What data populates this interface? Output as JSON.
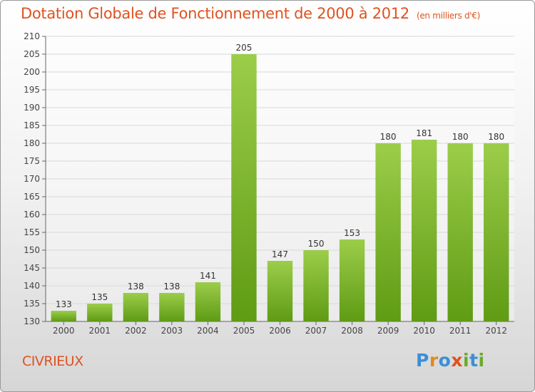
{
  "header": {
    "title": "Dotation Globale de Fonctionnement de 2000 à 2012",
    "subtitle": "(en milliers d'€)"
  },
  "footer": {
    "commune": "CIVRIEUX",
    "logo_letters": [
      {
        "char": "P",
        "color": "#3b8fd6"
      },
      {
        "char": "r",
        "color": "#e08a1e"
      },
      {
        "char": "o",
        "color": "#3b8fd6"
      },
      {
        "char": "x",
        "color": "#e0521f"
      },
      {
        "char": "i",
        "color": "#6aaa2a"
      },
      {
        "char": "t",
        "color": "#3b8fd6"
      },
      {
        "char": "i",
        "color": "#6aaa2a"
      }
    ]
  },
  "colors": {
    "title": "#e0521f",
    "bar_light": "#9ccd4a",
    "bar_dark": "#5f9b14"
  },
  "chart_data": {
    "type": "bar",
    "title": "Dotation Globale de Fonctionnement de 2000 à 2012",
    "subtitle": "(en milliers d'€)",
    "xlabel": "",
    "ylabel": "",
    "categories": [
      "2000",
      "2001",
      "2002",
      "2003",
      "2004",
      "2005",
      "2006",
      "2007",
      "2008",
      "2009",
      "2010",
      "2011",
      "2012"
    ],
    "values": [
      133,
      135,
      138,
      138,
      141,
      205,
      147,
      150,
      153,
      180,
      181,
      180,
      180
    ],
    "ylim": [
      130,
      210
    ],
    "yticks": [
      130,
      135,
      140,
      145,
      150,
      155,
      160,
      165,
      170,
      175,
      180,
      185,
      190,
      195,
      200,
      205,
      210
    ],
    "grid": true,
    "legend": "none"
  }
}
